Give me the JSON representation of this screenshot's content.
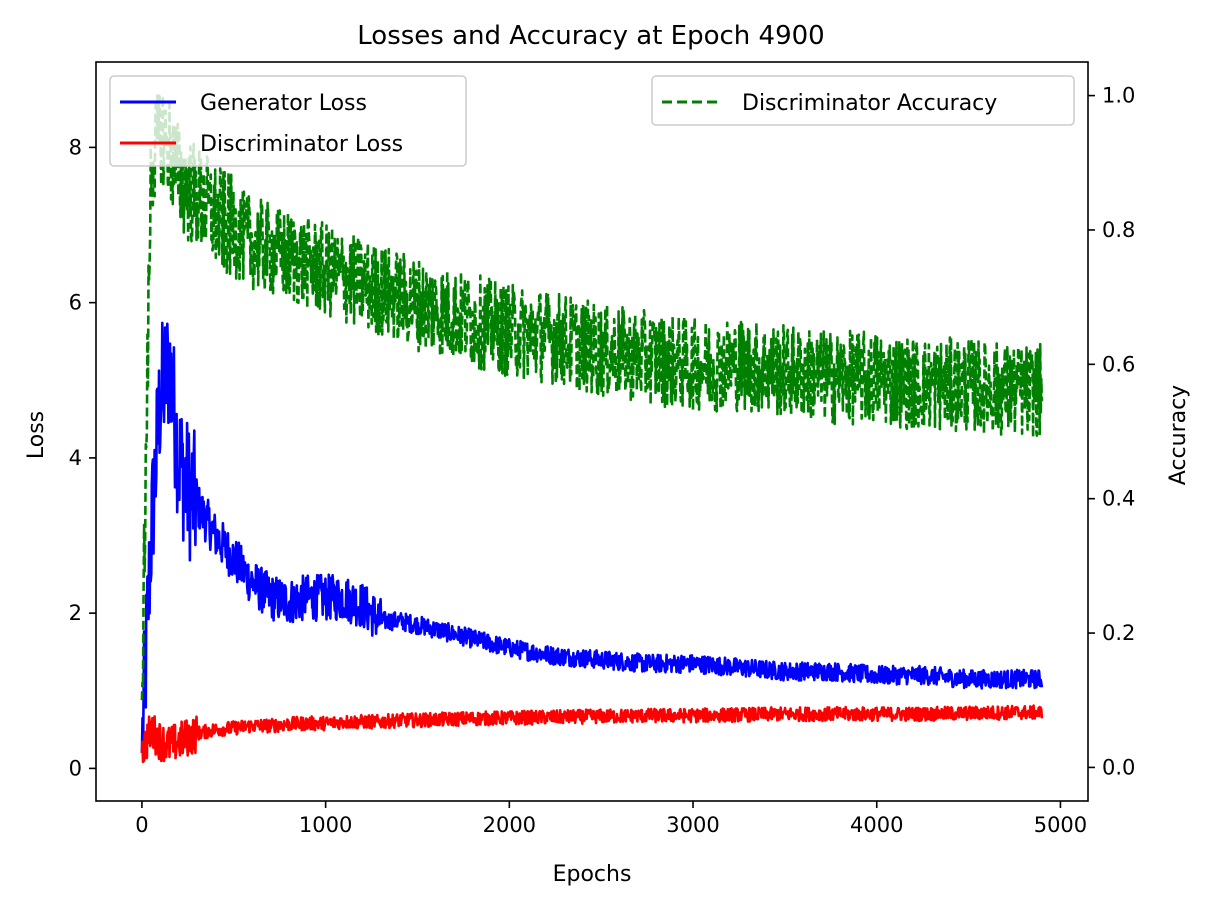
{
  "chart_data": {
    "type": "line",
    "title": "Losses and Accuracy at Epoch 4900",
    "xlabel": "Epochs",
    "ylabel_left": "Loss",
    "ylabel_right": "Accuracy",
    "xlim": [
      -250,
      5150
    ],
    "ylim_left": [
      -0.42,
      9.1
    ],
    "ylim_right": [
      -0.05,
      1.05
    ],
    "x_ticks": [
      "0",
      "1000",
      "2000",
      "3000",
      "4000",
      "5000"
    ],
    "y_ticks_left": [
      "0",
      "2",
      "4",
      "6",
      "8"
    ],
    "y_ticks_right": [
      "0.0",
      "0.2",
      "0.4",
      "0.6",
      "0.8",
      "1.0"
    ],
    "grid": false,
    "legend_left": {
      "placement": "top-left",
      "entries": [
        {
          "name": "Generator Loss",
          "color": "#0000ff",
          "style": "solid"
        },
        {
          "name": "Discriminator Loss",
          "color": "#ff0000",
          "style": "solid"
        }
      ]
    },
    "legend_right": {
      "placement": "top-right",
      "entries": [
        {
          "name": "Discriminator Accuracy",
          "color": "#008000",
          "style": "dashed"
        }
      ]
    },
    "series": [
      {
        "name": "Generator Loss",
        "axis": "left",
        "color": "#0000ff",
        "x": [
          0,
          50,
          100,
          150,
          200,
          250,
          300,
          400,
          500,
          600,
          700,
          800,
          900,
          1000,
          1100,
          1200,
          1300,
          1400,
          1500,
          1750,
          2000,
          2250,
          2500,
          2750,
          3000,
          3250,
          3500,
          3750,
          4000,
          4250,
          4500,
          4750,
          4900
        ],
        "y": [
          0.2,
          3.0,
          4.8,
          5.2,
          4.0,
          3.6,
          3.4,
          3.0,
          2.7,
          2.4,
          2.2,
          2.15,
          2.2,
          2.2,
          2.2,
          2.1,
          1.9,
          1.9,
          1.85,
          1.7,
          1.55,
          1.45,
          1.4,
          1.35,
          1.35,
          1.3,
          1.25,
          1.25,
          1.2,
          1.2,
          1.15,
          1.15,
          1.15
        ]
      },
      {
        "name": "Discriminator Loss",
        "axis": "left",
        "color": "#ff0000",
        "x": [
          0,
          50,
          100,
          150,
          200,
          250,
          300,
          400,
          500,
          600,
          700,
          800,
          900,
          1000,
          1100,
          1200,
          1300,
          1400,
          1500,
          1750,
          2000,
          2250,
          2500,
          2750,
          3000,
          3250,
          3500,
          3750,
          4000,
          4250,
          4500,
          4750,
          4900
        ],
        "y": [
          0.2,
          0.5,
          0.35,
          0.3,
          0.35,
          0.4,
          0.45,
          0.5,
          0.52,
          0.55,
          0.55,
          0.57,
          0.58,
          0.58,
          0.6,
          0.6,
          0.6,
          0.62,
          0.62,
          0.64,
          0.65,
          0.66,
          0.67,
          0.68,
          0.68,
          0.69,
          0.7,
          0.7,
          0.7,
          0.7,
          0.71,
          0.72,
          0.72
        ]
      },
      {
        "name": "Discriminator Accuracy",
        "axis": "right",
        "color": "#008000",
        "x": [
          0,
          50,
          100,
          150,
          200,
          250,
          300,
          400,
          500,
          600,
          700,
          800,
          900,
          1000,
          1100,
          1200,
          1300,
          1400,
          1500,
          1750,
          2000,
          2250,
          2500,
          2750,
          3000,
          3250,
          3500,
          3750,
          4000,
          4250,
          4500,
          4750,
          4900
        ],
        "y": [
          0.1,
          0.9,
          0.95,
          0.92,
          0.88,
          0.86,
          0.85,
          0.82,
          0.8,
          0.78,
          0.77,
          0.76,
          0.75,
          0.74,
          0.73,
          0.72,
          0.71,
          0.7,
          0.69,
          0.67,
          0.65,
          0.64,
          0.62,
          0.61,
          0.6,
          0.6,
          0.59,
          0.58,
          0.58,
          0.57,
          0.57,
          0.56,
          0.56
        ]
      }
    ]
  }
}
